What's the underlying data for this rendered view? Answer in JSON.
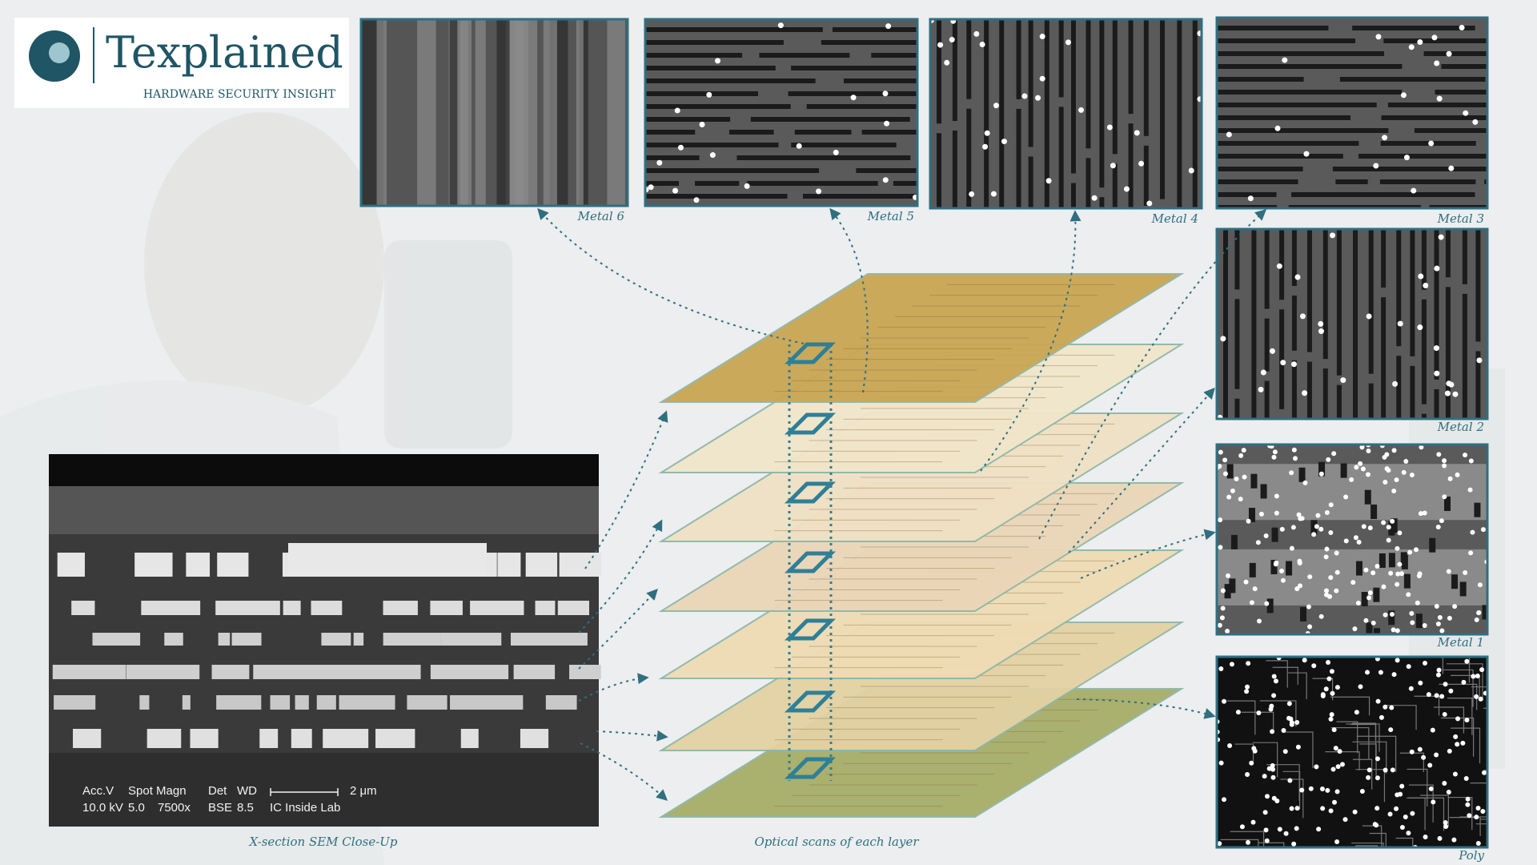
{
  "logo": {
    "name": "Texplained",
    "tagline": "HARDWARE SECURITY INSIGHT"
  },
  "panels": [
    {
      "label": "Metal 6"
    },
    {
      "label": "Metal 5"
    },
    {
      "label": "Metal 4"
    },
    {
      "label": "Metal 3"
    },
    {
      "label": "Metal 2"
    },
    {
      "label": "Metal 1"
    },
    {
      "label": "Poly"
    }
  ],
  "sem": {
    "header": [
      "Acc.V",
      "Spot Magn",
      "Det",
      "WD"
    ],
    "values": [
      "10.0 kV",
      "5.0",
      "7500x",
      "BSE",
      "8.5"
    ],
    "scale": "2 μm",
    "lab": "IC Inside Lab"
  },
  "captions": {
    "sem": "X-section SEM Close-Up",
    "stack": "Optical scans of each layer"
  }
}
